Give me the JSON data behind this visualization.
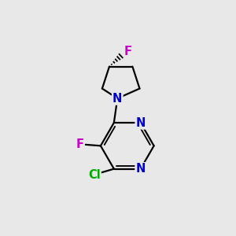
{
  "background_color": "#e8e8e8",
  "atom_colors": {
    "C": "#000000",
    "N": "#0000cc",
    "F_pyrl": "#cc00cc",
    "F_pyr": "#cc00cc",
    "Cl": "#00aa00"
  },
  "bond_color": "#000000",
  "bond_width": 1.6,
  "figsize": [
    3.0,
    3.0
  ],
  "dpi": 100,
  "font_size": 10.5
}
